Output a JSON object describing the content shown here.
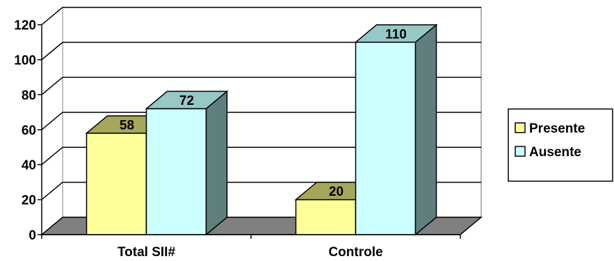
{
  "chart_data": {
    "type": "bar",
    "style": "3d-clustered-column",
    "categories": [
      "Total SII#",
      "Controle"
    ],
    "series": [
      {
        "name": "Presente",
        "values": [
          58,
          20
        ],
        "color": "#FFFF99",
        "top_color": "#A6A65A",
        "side_color": "#8C8C4B"
      },
      {
        "name": "Ausente",
        "values": [
          72,
          110
        ],
        "color": "#CCFFFF",
        "top_color": "#96C8C8",
        "side_color": "#5F7F7F"
      }
    ],
    "ylim": [
      0,
      120
    ],
    "yticks": [
      0,
      20,
      40,
      60,
      80,
      100,
      120
    ],
    "grid": true,
    "legend_position": "right",
    "data_labels": true,
    "floor_color": "#808080"
  }
}
